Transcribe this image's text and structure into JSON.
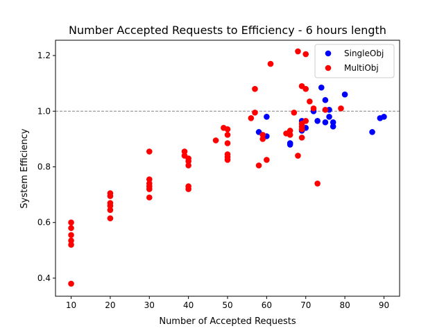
{
  "chart_data": {
    "type": "scatter",
    "title": "Number Accepted Requests to Efficiency - 6 hours length",
    "xlabel": "Number of Accepted Requests",
    "ylabel": "System Efficiency",
    "xlim": [
      6.0,
      94.0
    ],
    "ylim": [
      0.335,
      1.255
    ],
    "xticks": [
      10,
      20,
      30,
      40,
      50,
      60,
      70,
      80,
      90
    ],
    "yticks": [
      0.4,
      0.6,
      0.8,
      1.0,
      1.2
    ],
    "ytick_labels": [
      "0.4",
      "0.6",
      "0.8",
      "1.0",
      "1.2"
    ],
    "reference_line": {
      "y": 1.0,
      "style": "dashed",
      "color": "#808080"
    },
    "grid": false,
    "legend_position": "top-right",
    "series": [
      {
        "name": "SingleObj",
        "color": "#0000ff",
        "points": [
          [
            58,
            0.925
          ],
          [
            60,
            0.98
          ],
          [
            60,
            0.91
          ],
          [
            66,
            0.885
          ],
          [
            66,
            0.88
          ],
          [
            69,
            0.965
          ],
          [
            69,
            0.93
          ],
          [
            70,
            0.94
          ],
          [
            72,
            1.0
          ],
          [
            73,
            0.965
          ],
          [
            74,
            1.085
          ],
          [
            75,
            1.04
          ],
          [
            75,
            0.96
          ],
          [
            76,
            1.005
          ],
          [
            76,
            0.98
          ],
          [
            77,
            0.96
          ],
          [
            77,
            0.945
          ],
          [
            80,
            1.06
          ],
          [
            87,
            0.925
          ],
          [
            89,
            0.975
          ],
          [
            90,
            0.98
          ]
        ]
      },
      {
        "name": "MultiObj",
        "color": "#ff0000",
        "points": [
          [
            10,
            0.6
          ],
          [
            10,
            0.58
          ],
          [
            10,
            0.555
          ],
          [
            10,
            0.535
          ],
          [
            10,
            0.52
          ],
          [
            10,
            0.38
          ],
          [
            20,
            0.705
          ],
          [
            20,
            0.695
          ],
          [
            20,
            0.67
          ],
          [
            20,
            0.66
          ],
          [
            20,
            0.645
          ],
          [
            20,
            0.615
          ],
          [
            30,
            0.855
          ],
          [
            30,
            0.755
          ],
          [
            30,
            0.74
          ],
          [
            30,
            0.73
          ],
          [
            30,
            0.72
          ],
          [
            30,
            0.69
          ],
          [
            39,
            0.855
          ],
          [
            39,
            0.84
          ],
          [
            40,
            0.83
          ],
          [
            40,
            0.82
          ],
          [
            40,
            0.805
          ],
          [
            40,
            0.73
          ],
          [
            40,
            0.72
          ],
          [
            47,
            0.895
          ],
          [
            49,
            0.94
          ],
          [
            50,
            0.935
          ],
          [
            50,
            0.915
          ],
          [
            50,
            0.885
          ],
          [
            50,
            0.845
          ],
          [
            50,
            0.835
          ],
          [
            50,
            0.825
          ],
          [
            56,
            0.975
          ],
          [
            57,
            1.08
          ],
          [
            57,
            0.995
          ],
          [
            58,
            0.805
          ],
          [
            59,
            0.915
          ],
          [
            59,
            0.9
          ],
          [
            60,
            0.825
          ],
          [
            61,
            1.17
          ],
          [
            65,
            0.92
          ],
          [
            66,
            0.93
          ],
          [
            66,
            0.915
          ],
          [
            67,
            0.995
          ],
          [
            68,
            1.215
          ],
          [
            68,
            0.84
          ],
          [
            69,
            1.09
          ],
          [
            69,
            0.955
          ],
          [
            69,
            0.945
          ],
          [
            69,
            0.935
          ],
          [
            69,
            0.905
          ],
          [
            70,
            1.205
          ],
          [
            70,
            1.08
          ],
          [
            70,
            0.965
          ],
          [
            71,
            1.035
          ],
          [
            72,
            1.01
          ],
          [
            73,
            0.74
          ],
          [
            75,
            1.005
          ],
          [
            79,
            1.01
          ]
        ]
      }
    ]
  }
}
